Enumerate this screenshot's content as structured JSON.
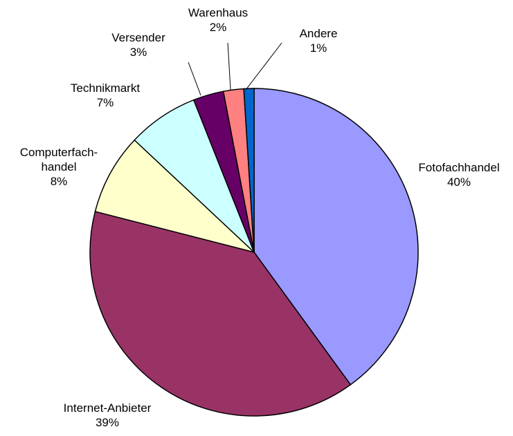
{
  "chart_data": {
    "type": "pie",
    "categories": [
      "Fotofachhandel",
      "Internet-Anbieter",
      "Computerfach-\nhandel",
      "Technikmarkt",
      "Versender",
      "Warenhaus",
      "Andere"
    ],
    "values": [
      40,
      39,
      8,
      7,
      3,
      2,
      1
    ],
    "value_labels": [
      "40%",
      "39%",
      "8%",
      "7%",
      "3%",
      "2%",
      "1%"
    ],
    "colors": [
      "#9999ff",
      "#993366",
      "#ffffcc",
      "#ccffff",
      "#660066",
      "#ff8080",
      "#0066cc"
    ]
  }
}
